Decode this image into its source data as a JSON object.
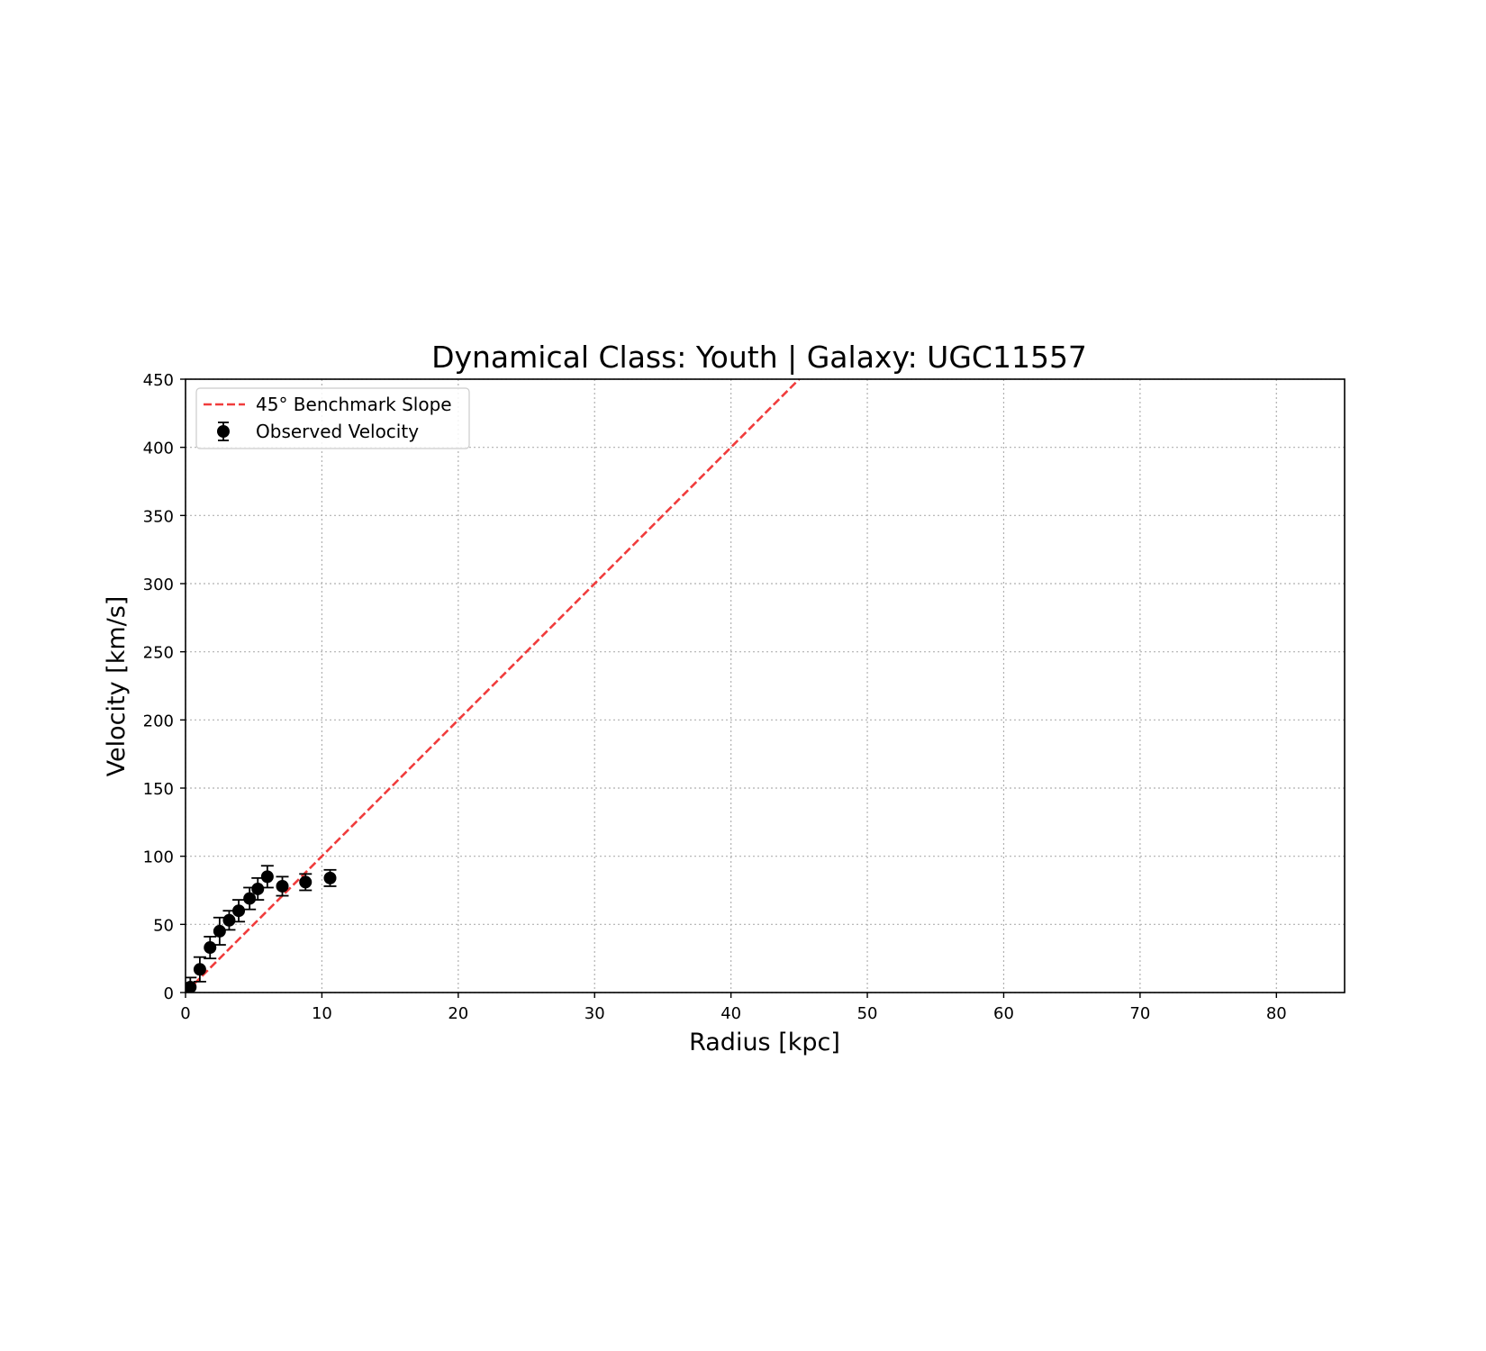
{
  "chart_data": {
    "type": "scatter",
    "title": "Dynamical Class: Youth | Galaxy: UGC11557",
    "xlabel": "Radius [kpc]",
    "ylabel": "Velocity [km/s]",
    "xlim": [
      0,
      85
    ],
    "ylim": [
      0,
      450
    ],
    "xticks": [
      0,
      10,
      20,
      30,
      40,
      50,
      60,
      70,
      80
    ],
    "yticks": [
      0,
      50,
      100,
      150,
      200,
      250,
      300,
      350,
      400,
      450
    ],
    "grid": true,
    "legend_position": "upper-left",
    "series": [
      {
        "name": "45° Benchmark Slope",
        "kind": "line",
        "style": "dashed",
        "color": "#f03c3c",
        "x": [
          0,
          85
        ],
        "y": [
          0,
          850
        ]
      },
      {
        "name": "Observed Velocity",
        "kind": "errorbar",
        "color": "#000000",
        "x": [
          0.35,
          1.05,
          1.8,
          2.5,
          3.2,
          3.9,
          4.7,
          5.3,
          6.0,
          7.1,
          8.8,
          10.6
        ],
        "y": [
          4,
          17,
          33,
          45,
          53,
          60,
          69,
          76,
          85,
          78,
          81,
          84
        ],
        "yerr": [
          7,
          9,
          8,
          10,
          7,
          8,
          8,
          8,
          8,
          7,
          6,
          6
        ]
      }
    ]
  }
}
